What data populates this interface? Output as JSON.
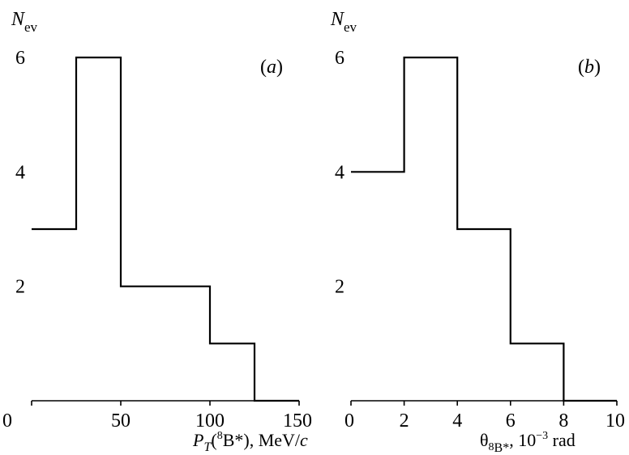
{
  "chart_data": [
    {
      "type": "histogram",
      "panel_label": "(a)",
      "ylabel": {
        "main": "N",
        "sub": "ev"
      },
      "xlabel": {
        "pre": "P",
        "sub1": "T",
        "p1": "(",
        "sup": "8",
        "p2": "B*), MeV/",
        "unit_it": "c"
      },
      "xlim": [
        0,
        150
      ],
      "ylim": [
        0,
        6.3
      ],
      "x_ticks": [
        0,
        50,
        100,
        150
      ],
      "y_ticks": [
        2,
        4,
        6
      ],
      "bin_edges": [
        0,
        25,
        50,
        100,
        125,
        150
      ],
      "counts": [
        3,
        6,
        2,
        1,
        0
      ]
    },
    {
      "type": "histogram",
      "panel_label": "(b)",
      "ylabel": {
        "main": "N",
        "sub": "ev"
      },
      "xlabel": {
        "theta": "θ",
        "sub_sup": "8",
        "sub": "B*",
        "rest": ", 10",
        "exp": "−3",
        "unit": " rad"
      },
      "xlim": [
        0,
        10
      ],
      "ylim": [
        0,
        6.3
      ],
      "x_ticks": [
        0,
        2,
        4,
        6,
        8,
        10
      ],
      "y_ticks": [
        2,
        4,
        6
      ],
      "bin_edges": [
        0,
        2,
        4,
        6,
        8,
        10
      ],
      "counts": [
        4,
        6,
        3,
        1,
        0
      ]
    }
  ]
}
